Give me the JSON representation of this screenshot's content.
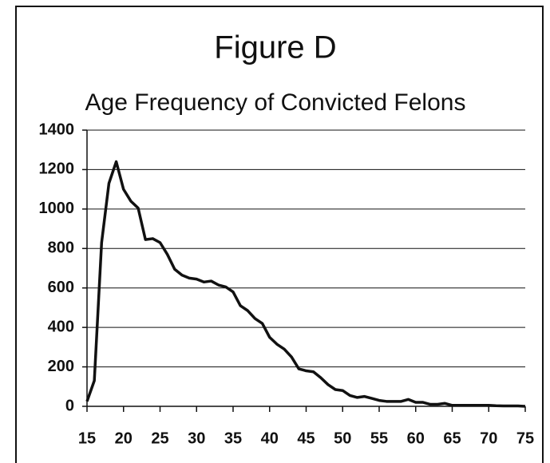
{
  "chart_data": {
    "type": "line",
    "title": "Figure D",
    "subtitle": "Age Frequency of Convicted Felons",
    "x": [
      15,
      16,
      17,
      18,
      19,
      20,
      21,
      22,
      23,
      24,
      25,
      26,
      27,
      28,
      29,
      30,
      31,
      32,
      33,
      34,
      35,
      36,
      37,
      38,
      39,
      40,
      41,
      42,
      43,
      44,
      45,
      46,
      47,
      48,
      49,
      50,
      51,
      52,
      53,
      54,
      55,
      56,
      57,
      58,
      59,
      60,
      61,
      62,
      63,
      64,
      65,
      66,
      67,
      68,
      69,
      70,
      71,
      72,
      73,
      74,
      75
    ],
    "series": [
      {
        "name": "Age Frequency",
        "color": "#111111",
        "values": [
          25,
          130,
          830,
          1130,
          1240,
          1100,
          1040,
          1005,
          845,
          850,
          830,
          770,
          695,
          665,
          650,
          645,
          630,
          635,
          615,
          605,
          580,
          510,
          485,
          445,
          420,
          350,
          315,
          290,
          250,
          190,
          180,
          175,
          145,
          110,
          85,
          80,
          55,
          45,
          50,
          40,
          30,
          25,
          25,
          25,
          35,
          20,
          20,
          10,
          10,
          15,
          5,
          5,
          5,
          5,
          5,
          5,
          3,
          2,
          2,
          2,
          0
        ]
      }
    ],
    "xlim": [
      15,
      75
    ],
    "xticks": [
      15,
      20,
      25,
      30,
      35,
      40,
      45,
      50,
      55,
      60,
      65,
      70,
      75
    ],
    "ylim": [
      0,
      1400
    ],
    "yticks": [
      0,
      200,
      400,
      600,
      800,
      1000,
      1200,
      1400
    ],
    "grid": true
  }
}
